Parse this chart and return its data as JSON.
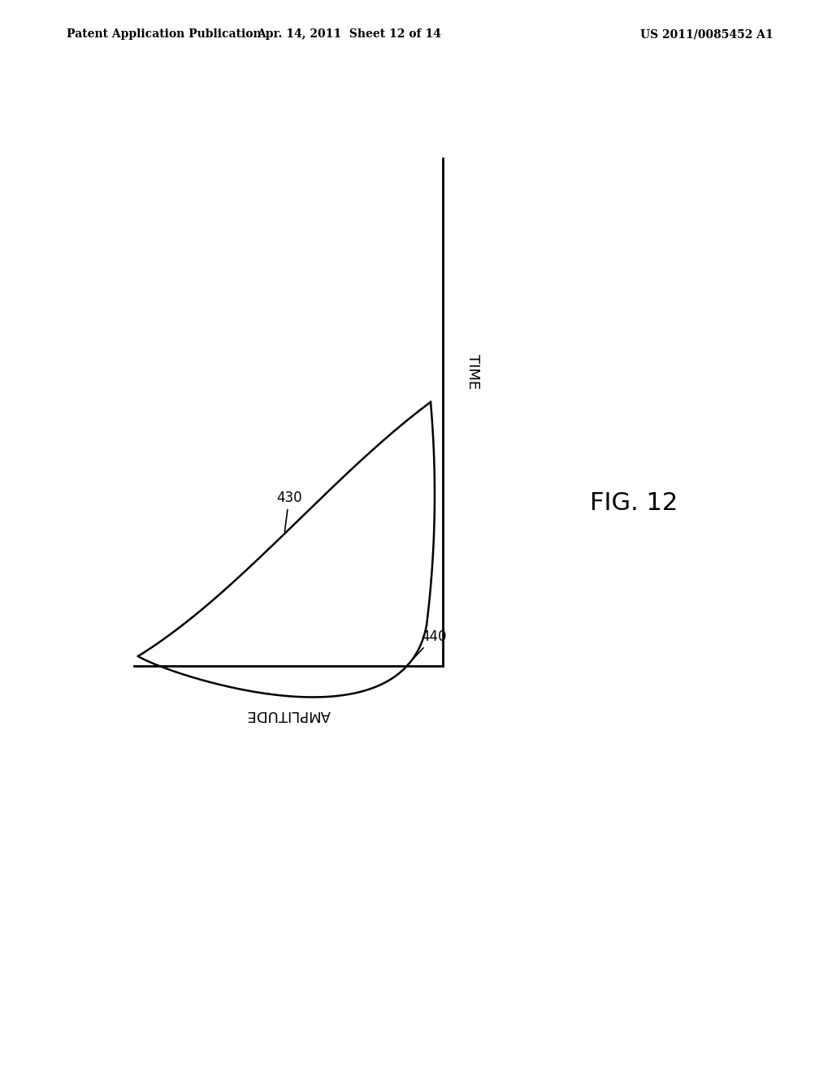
{
  "header_left": "Patent Application Publication",
  "header_mid": "Apr. 14, 2011  Sheet 12 of 14",
  "header_right": "US 2011/0085452 A1",
  "fig_label": "FIG. 12",
  "time_label": "TIME",
  "amplitude_label": "AMPLITUDE",
  "label_430": "430",
  "label_440": "440",
  "bg_color": "#ffffff",
  "line_color": "#000000",
  "header_fontsize": 10,
  "axis_label_fontsize": 13,
  "fig_label_fontsize": 22,
  "annotation_fontsize": 12
}
